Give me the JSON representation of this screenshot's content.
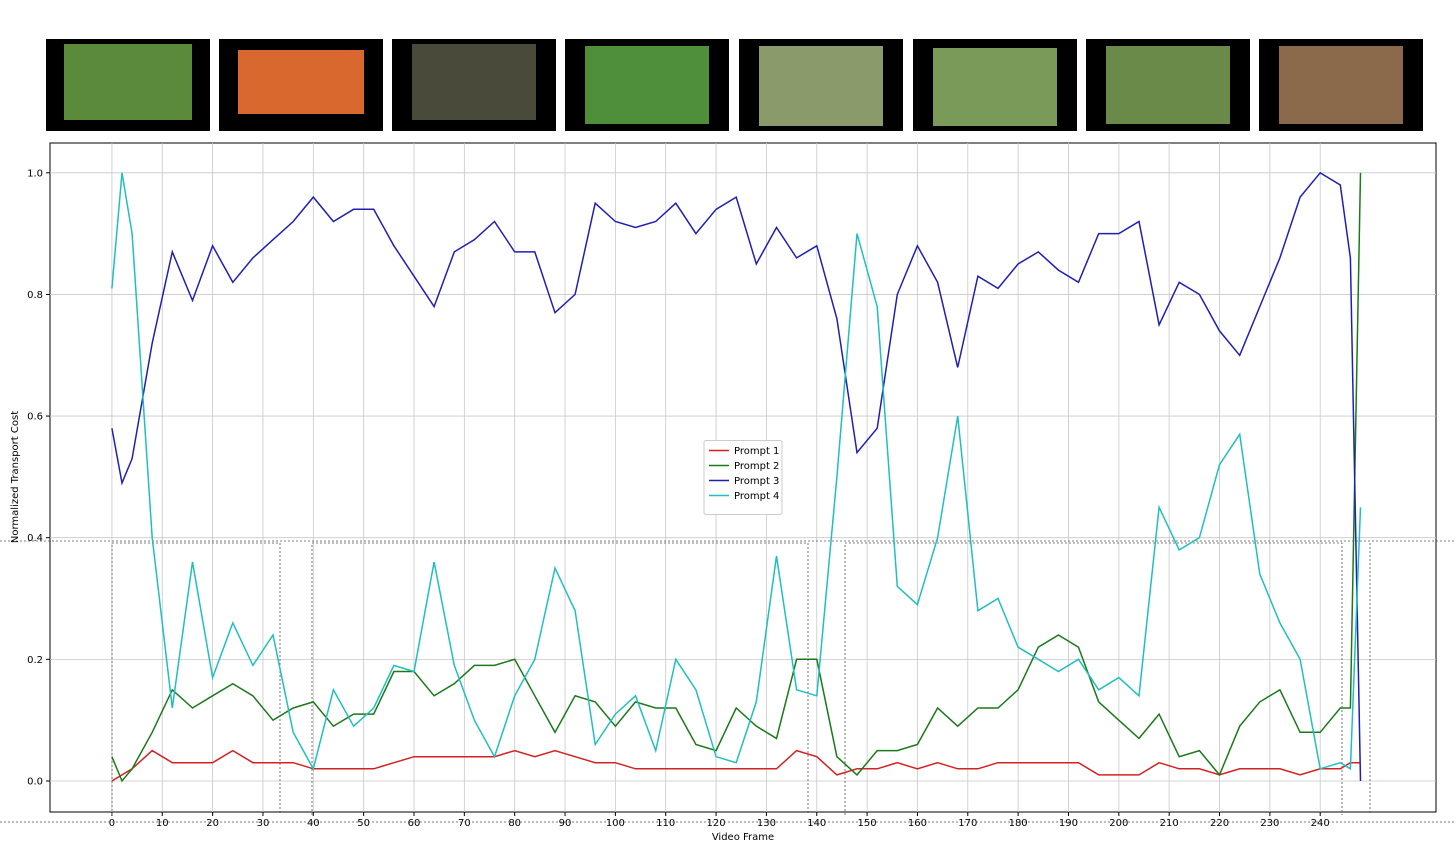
{
  "chart_data": {
    "type": "line",
    "x_label": "Video Frame",
    "y_label": "Normalized Transport Cost",
    "x": [
      0,
      2,
      4,
      8,
      12,
      16,
      20,
      24,
      28,
      32,
      36,
      40,
      44,
      48,
      52,
      56,
      60,
      64,
      68,
      72,
      76,
      80,
      84,
      88,
      92,
      96,
      100,
      104,
      108,
      112,
      116,
      120,
      124,
      128,
      132,
      136,
      140,
      144,
      148,
      152,
      156,
      160,
      164,
      168,
      172,
      176,
      180,
      184,
      188,
      192,
      196,
      200,
      204,
      208,
      212,
      216,
      220,
      224,
      228,
      232,
      236,
      240,
      244,
      246,
      248
    ],
    "series": [
      {
        "name": "Prompt 1",
        "color": "#d62020",
        "values": [
          0,
          0.01,
          0.02,
          0.05,
          0.03,
          0.03,
          0.03,
          0.05,
          0.03,
          0.03,
          0.03,
          0.02,
          0.02,
          0.02,
          0.02,
          0.03,
          0.04,
          0.04,
          0.04,
          0.04,
          0.04,
          0.05,
          0.04,
          0.05,
          0.04,
          0.03,
          0.03,
          0.02,
          0.02,
          0.02,
          0.02,
          0.02,
          0.02,
          0.02,
          0.02,
          0.05,
          0.04,
          0.01,
          0.02,
          0.02,
          0.03,
          0.02,
          0.03,
          0.02,
          0.02,
          0.03,
          0.03,
          0.03,
          0.03,
          0.03,
          0.01,
          0.01,
          0.01,
          0.03,
          0.02,
          0.02,
          0.01,
          0.02,
          0.02,
          0.02,
          0.01,
          0.02,
          0.02,
          0.03,
          0.03
        ]
      },
      {
        "name": "Prompt 2",
        "color": "#1a7a1a",
        "values": [
          0.04,
          0,
          0.02,
          0.08,
          0.15,
          0.12,
          0.14,
          0.16,
          0.14,
          0.1,
          0.12,
          0.13,
          0.09,
          0.11,
          0.11,
          0.18,
          0.18,
          0.14,
          0.16,
          0.19,
          0.19,
          0.2,
          0.14,
          0.08,
          0.14,
          0.13,
          0.09,
          0.13,
          0.12,
          0.12,
          0.06,
          0.05,
          0.12,
          0.09,
          0.07,
          0.2,
          0.2,
          0.04,
          0.01,
          0.05,
          0.05,
          0.06,
          0.12,
          0.09,
          0.12,
          0.12,
          0.15,
          0.22,
          0.24,
          0.22,
          0.13,
          0.1,
          0.07,
          0.11,
          0.04,
          0.05,
          0.01,
          0.09,
          0.13,
          0.15,
          0.08,
          0.08,
          0.12,
          0.12,
          1.0
        ]
      },
      {
        "name": "Prompt 3",
        "color": "#1f1fb4",
        "values": [
          0.58,
          0.49,
          0.53,
          0.72,
          0.87,
          0.79,
          0.88,
          0.82,
          0.86,
          0.89,
          0.92,
          0.96,
          0.92,
          0.94,
          0.94,
          0.88,
          0.83,
          0.78,
          0.87,
          0.89,
          0.92,
          0.87,
          0.87,
          0.77,
          0.8,
          0.95,
          0.92,
          0.91,
          0.92,
          0.95,
          0.9,
          0.94,
          0.96,
          0.85,
          0.91,
          0.86,
          0.88,
          0.76,
          0.54,
          0.58,
          0.8,
          0.88,
          0.82,
          0.68,
          0.83,
          0.81,
          0.85,
          0.87,
          0.84,
          0.82,
          0.9,
          0.9,
          0.92,
          0.75,
          0.82,
          0.8,
          0.74,
          0.7,
          0.78,
          0.86,
          0.96,
          1.0,
          0.98,
          0.86,
          0
        ]
      },
      {
        "name": "Prompt 4",
        "color": "#20bfbf",
        "values": [
          0.81,
          1.0,
          0.9,
          0.4,
          0.12,
          0.36,
          0.17,
          0.26,
          0.19,
          0.24,
          0.08,
          0.02,
          0.15,
          0.09,
          0.12,
          0.19,
          0.18,
          0.36,
          0.19,
          0.1,
          0.04,
          0.14,
          0.2,
          0.35,
          0.28,
          0.06,
          0.11,
          0.14,
          0.05,
          0.2,
          0.15,
          0.04,
          0.03,
          0.13,
          0.37,
          0.15,
          0.14,
          0.5,
          0.9,
          0.78,
          0.32,
          0.29,
          0.4,
          0.6,
          0.28,
          0.3,
          0.22,
          0.2,
          0.18,
          0.2,
          0.15,
          0.17,
          0.14,
          0.45,
          0.38,
          0.4,
          0.52,
          0.57,
          0.34,
          0.26,
          0.2,
          0.02,
          0.03,
          0.02,
          0.45
        ]
      }
    ],
    "xlim": [
      -12.3,
      263
    ],
    "ylim": [
      -0.051,
      1.049
    ],
    "xticks": [
      0,
      10,
      20,
      30,
      40,
      50,
      60,
      70,
      80,
      90,
      100,
      110,
      120,
      130,
      140,
      150,
      160,
      170,
      180,
      190,
      200,
      210,
      220,
      230,
      240
    ],
    "yticks": [
      {
        "value": 0,
        "label": "0.0"
      },
      0.2,
      0.4,
      0.6,
      0.8,
      {
        "value": 1,
        "label": "1.0"
      }
    ],
    "grid": true,
    "legend": "center"
  }
}
